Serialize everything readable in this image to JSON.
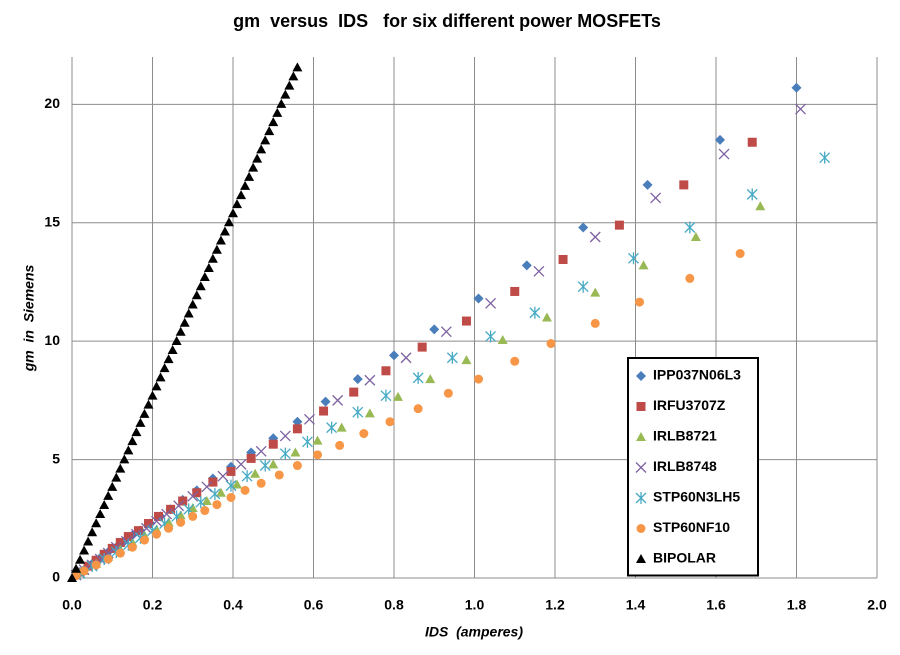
{
  "chart_data": {
    "type": "scatter",
    "title": "gm  versus  IDS   for six different power MOSFETs",
    "xlabel": "IDS  (amperes)",
    "ylabel": "gm  in  Siemens",
    "xlim": [
      0,
      2
    ],
    "ylim": [
      0,
      22
    ],
    "xticks": [
      {
        "value": 0,
        "label": "0.0"
      },
      0.2,
      0.4,
      0.6,
      0.8,
      {
        "value": 1,
        "label": "1.0"
      },
      1.2,
      1.4,
      1.6,
      1.8,
      {
        "value": 2,
        "label": "2.0"
      }
    ],
    "yticks": [
      0,
      5,
      10,
      15,
      20
    ],
    "grid": true,
    "legend": "lower right",
    "series": [
      {
        "name": "IPP037N06L3",
        "color": "#4a7ebb",
        "marker": "diamond",
        "x": [
          1.8,
          1.61,
          1.43,
          1.27,
          1.13,
          1.01,
          0.9,
          0.8,
          0.71,
          0.63,
          0.56,
          0.5,
          0.445,
          0.395,
          0.35,
          0.31,
          0.275,
          0.245,
          0.22,
          0.195,
          0.17,
          0.15,
          0.13,
          0.11,
          0.09,
          0.07,
          0.05,
          0.03,
          0.01
        ],
        "values": [
          20.7,
          18.5,
          16.6,
          14.8,
          13.2,
          11.8,
          10.5,
          9.4,
          8.4,
          7.45,
          6.6,
          5.9,
          5.3,
          4.7,
          4.2,
          3.7,
          3.3,
          2.9,
          2.6,
          2.3,
          2.0,
          1.8,
          1.55,
          1.3,
          1.1,
          0.85,
          0.6,
          0.35,
          0.12
        ]
      },
      {
        "name": "IRFU3707Z",
        "color": "#be4b48",
        "marker": "square",
        "x": [
          1.69,
          1.52,
          1.36,
          1.22,
          1.1,
          0.98,
          0.87,
          0.78,
          0.7,
          0.625,
          0.56,
          0.5,
          0.445,
          0.395,
          0.35,
          0.31,
          0.275,
          0.245,
          0.215,
          0.19,
          0.165,
          0.14,
          0.12,
          0.1,
          0.08,
          0.06,
          0.04,
          0.02
        ],
        "values": [
          18.4,
          16.6,
          14.9,
          13.45,
          12.1,
          10.85,
          9.75,
          8.75,
          7.85,
          7.05,
          6.3,
          5.65,
          5.05,
          4.5,
          4.05,
          3.6,
          3.25,
          2.9,
          2.6,
          2.3,
          2.0,
          1.75,
          1.5,
          1.25,
          1.0,
          0.75,
          0.5,
          0.25
        ]
      },
      {
        "name": "IRLB8721",
        "color": "#98b954",
        "marker": "triangle",
        "x": [
          1.71,
          1.55,
          1.42,
          1.3,
          1.18,
          1.07,
          0.98,
          0.89,
          0.81,
          0.74,
          0.67,
          0.61,
          0.555,
          0.5,
          0.455,
          0.41,
          0.37,
          0.335,
          0.3,
          0.27,
          0.24,
          0.21,
          0.18,
          0.15,
          0.12,
          0.09,
          0.06,
          0.03
        ],
        "values": [
          15.7,
          14.4,
          13.2,
          12.05,
          11.0,
          10.05,
          9.2,
          8.4,
          7.65,
          6.95,
          6.35,
          5.8,
          5.3,
          4.8,
          4.4,
          3.95,
          3.6,
          3.25,
          2.95,
          2.65,
          2.35,
          2.05,
          1.8,
          1.5,
          1.2,
          0.9,
          0.6,
          0.3
        ]
      },
      {
        "name": "IRLB8748",
        "color": "#7d60a0",
        "marker": "x",
        "x": [
          1.81,
          1.62,
          1.45,
          1.3,
          1.16,
          1.04,
          0.93,
          0.83,
          0.74,
          0.66,
          0.59,
          0.53,
          0.47,
          0.42,
          0.375,
          0.335,
          0.3,
          0.265,
          0.235,
          0.21,
          0.185,
          0.16,
          0.135,
          0.11,
          0.09,
          0.07,
          0.05,
          0.03,
          0.01
        ],
        "values": [
          19.8,
          17.9,
          16.05,
          14.4,
          12.95,
          11.6,
          10.4,
          9.3,
          8.35,
          7.5,
          6.7,
          6.0,
          5.35,
          4.8,
          4.3,
          3.85,
          3.45,
          3.05,
          2.7,
          2.4,
          2.1,
          1.85,
          1.55,
          1.3,
          1.05,
          0.8,
          0.55,
          0.35,
          0.12
        ]
      },
      {
        "name": "STP60N3LH5",
        "color": "#46aac5",
        "marker": "star",
        "x": [
          1.87,
          1.69,
          1.535,
          1.395,
          1.27,
          1.15,
          1.04,
          0.945,
          0.86,
          0.78,
          0.71,
          0.645,
          0.585,
          0.53,
          0.48,
          0.435,
          0.395,
          0.355,
          0.32,
          0.29,
          0.26,
          0.23,
          0.2,
          0.17,
          0.14,
          0.11,
          0.08,
          0.05,
          0.02
        ],
        "values": [
          17.75,
          16.2,
          14.8,
          13.5,
          12.3,
          11.2,
          10.2,
          9.3,
          8.45,
          7.7,
          7.0,
          6.35,
          5.75,
          5.25,
          4.75,
          4.3,
          3.9,
          3.55,
          3.2,
          2.9,
          2.6,
          2.3,
          2.0,
          1.7,
          1.4,
          1.1,
          0.8,
          0.5,
          0.2
        ]
      },
      {
        "name": "STP60NF10",
        "color": "#f79646",
        "marker": "circle",
        "x": [
          1.66,
          1.535,
          1.41,
          1.3,
          1.19,
          1.1,
          1.01,
          0.935,
          0.86,
          0.79,
          0.725,
          0.665,
          0.61,
          0.56,
          0.515,
          0.47,
          0.43,
          0.395,
          0.36,
          0.33,
          0.3,
          0.27,
          0.24,
          0.21,
          0.18,
          0.15,
          0.12,
          0.09,
          0.06,
          0.03,
          0.01
        ],
        "values": [
          13.7,
          12.65,
          11.65,
          10.75,
          9.9,
          9.15,
          8.4,
          7.8,
          7.15,
          6.6,
          6.1,
          5.6,
          5.2,
          4.75,
          4.35,
          4.0,
          3.7,
          3.4,
          3.1,
          2.85,
          2.6,
          2.35,
          2.1,
          1.85,
          1.6,
          1.3,
          1.05,
          0.8,
          0.55,
          0.3,
          0.1
        ]
      },
      {
        "name": "BIPOLAR",
        "color": "#000000",
        "marker": "triangle",
        "x": [
          0,
          0.01,
          0.02,
          0.03,
          0.04,
          0.05,
          0.06,
          0.07,
          0.08,
          0.09,
          0.1,
          0.11,
          0.12,
          0.13,
          0.14,
          0.15,
          0.16,
          0.17,
          0.18,
          0.19,
          0.2,
          0.21,
          0.22,
          0.23,
          0.24,
          0.25,
          0.26,
          0.27,
          0.28,
          0.29,
          0.3,
          0.31,
          0.32,
          0.33,
          0.34,
          0.35,
          0.36,
          0.37,
          0.38,
          0.39,
          0.4,
          0.41,
          0.42,
          0.43,
          0.44,
          0.45,
          0.46,
          0.47,
          0.48,
          0.49,
          0.5,
          0.51,
          0.52,
          0.53,
          0.54,
          0.55,
          0.56
        ],
        "values": [
          0,
          0.39,
          0.77,
          1.16,
          1.54,
          1.93,
          2.31,
          2.7,
          3.08,
          3.47,
          3.85,
          4.24,
          4.62,
          5.01,
          5.39,
          5.78,
          6.16,
          6.55,
          6.93,
          7.32,
          7.7,
          8.09,
          8.47,
          8.86,
          9.24,
          9.63,
          10.01,
          10.4,
          10.78,
          11.17,
          11.55,
          11.94,
          12.32,
          12.71,
          13.09,
          13.48,
          13.86,
          14.25,
          14.63,
          15.02,
          15.4,
          15.79,
          16.17,
          16.56,
          16.94,
          17.33,
          17.71,
          18.1,
          18.48,
          18.87,
          19.25,
          19.64,
          20.02,
          20.41,
          20.79,
          21.18,
          21.56
        ]
      }
    ]
  }
}
